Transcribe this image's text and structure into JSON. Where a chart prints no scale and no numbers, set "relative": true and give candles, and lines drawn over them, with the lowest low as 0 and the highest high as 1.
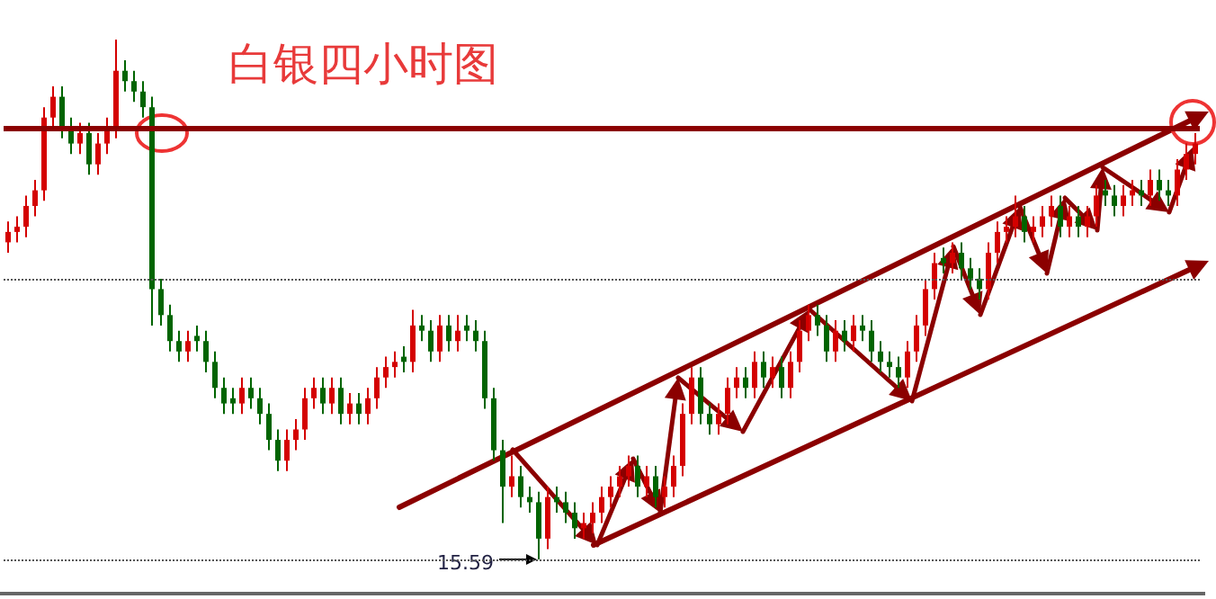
{
  "chart_data": {
    "type": "candlestick",
    "title": "白银四小时图",
    "relative": true,
    "colors": [
      "#d40000",
      "#d40000",
      "#d40000",
      "#d40000",
      "#d40000",
      "#d40000",
      "#006400",
      "#006400",
      "#d40000",
      "#006400",
      "#d40000",
      "#d40000",
      "#d40000",
      "#006400",
      "#006400",
      "#006400",
      "#006400",
      "#006400",
      "#006400",
      "#006400",
      "#d40000",
      "#006400",
      "#006400",
      "#006400",
      "#006400",
      "#006400",
      "#d40000",
      "#006400",
      "#006400",
      "#006400",
      "#006400",
      "#d40000",
      "#d40000",
      "#d40000",
      "#d40000",
      "#006400",
      "#d40000",
      "#006400",
      "#d40000",
      "#006400",
      "#d40000",
      "#d40000",
      "#d40000",
      "#d40000",
      "#006400",
      "#d40000",
      "#006400",
      "#006400",
      "#d40000",
      "#006400",
      "#d40000",
      "#006400",
      "#006400",
      "#006400",
      "#006400",
      "#006400",
      "#d40000",
      "#006400",
      "#006400",
      "#006400",
      "#d40000",
      "#006400",
      "#006400",
      "#006400",
      "#d40000",
      "#d40000",
      "#d40000",
      "#d40000",
      "#d40000",
      "#d40000",
      "#006400",
      "#d40000",
      "#006400",
      "#d40000",
      "#d40000",
      "#d40000",
      "#d40000",
      "#006400",
      "#006400",
      "#d40000",
      "#d40000",
      "#d40000",
      "#006400",
      "#d40000",
      "#006400",
      "#d40000",
      "#006400",
      "#d40000",
      "#d40000",
      "#d40000",
      "#006400",
      "#006400",
      "#d40000",
      "#006400",
      "#d40000",
      "#006400",
      "#006400",
      "#006400",
      "#006400",
      "#006400",
      "#d40000",
      "#d40000",
      "#d40000",
      "#d40000",
      "#006400",
      "#d40000",
      "#006400",
      "#006400",
      "#006400",
      "#d40000",
      "#d40000",
      "#d40000",
      "#d40000",
      "#006400",
      "#d40000",
      "#d40000",
      "#d40000",
      "#006400",
      "#d40000",
      "#006400",
      "#d40000",
      "#d40000",
      "#006400",
      "#006400",
      "#d40000",
      "#d40000",
      "#006400",
      "#d40000",
      "#006400",
      "#006400",
      "#d40000",
      "#d40000",
      "#d40000"
    ],
    "categories": [
      null,
      null,
      null,
      null,
      null,
      null,
      null,
      null,
      null,
      null,
      null,
      null,
      null,
      null,
      null,
      null,
      null,
      null,
      null,
      null,
      null,
      null,
      null,
      null,
      null,
      null,
      null,
      null,
      null,
      null,
      null,
      null,
      null,
      null,
      null,
      null,
      null,
      null,
      null,
      null,
      null,
      null,
      null,
      null,
      null,
      null,
      null,
      null,
      null,
      null,
      null,
      null,
      null,
      null,
      null,
      null,
      null,
      null,
      null,
      null,
      null,
      null,
      null,
      null,
      null,
      null,
      null,
      null,
      null,
      null,
      null,
      null,
      null,
      null,
      null,
      null,
      null,
      null,
      null,
      null,
      null,
      null,
      null,
      null,
      null,
      null,
      null,
      null,
      null,
      null,
      null,
      null,
      null,
      null,
      null,
      null,
      null,
      null,
      null,
      null,
      null,
      null,
      null,
      null,
      null,
      null,
      null,
      null,
      null,
      null,
      null,
      null,
      null,
      null,
      null,
      null,
      null,
      null,
      null,
      null,
      null,
      null,
      null,
      null,
      null,
      null,
      null,
      null,
      null,
      null,
      null,
      null,
      null
    ],
    "ohlc": [
      [
        0.61,
        0.65,
        0.59,
        0.63
      ],
      [
        0.63,
        0.66,
        0.61,
        0.64
      ],
      [
        0.64,
        0.7,
        0.62,
        0.68
      ],
      [
        0.68,
        0.73,
        0.66,
        0.71
      ],
      [
        0.71,
        0.87,
        0.69,
        0.85
      ],
      [
        0.85,
        0.91,
        0.83,
        0.89
      ],
      [
        0.89,
        0.91,
        0.81,
        0.83
      ],
      [
        0.83,
        0.85,
        0.78,
        0.8
      ],
      [
        0.8,
        0.84,
        0.78,
        0.82
      ],
      [
        0.82,
        0.84,
        0.74,
        0.76
      ],
      [
        0.76,
        0.82,
        0.74,
        0.8
      ],
      [
        0.8,
        0.85,
        0.78,
        0.83
      ],
      [
        0.83,
        1,
        0.81,
        0.94
      ],
      [
        0.94,
        0.96,
        0.9,
        0.92
      ],
      [
        0.92,
        0.94,
        0.88,
        0.9
      ],
      [
        0.9,
        0.92,
        0.85,
        0.87
      ],
      [
        0.87,
        0.89,
        0.45,
        0.52
      ],
      [
        0.52,
        0.54,
        0.45,
        0.47
      ],
      [
        0.47,
        0.49,
        0.4,
        0.42
      ],
      [
        0.42,
        0.44,
        0.38,
        0.4
      ],
      [
        0.4,
        0.44,
        0.38,
        0.42
      ],
      [
        0.43,
        0.45,
        0.4,
        0.42
      ],
      [
        0.42,
        0.44,
        0.36,
        0.38
      ],
      [
        0.38,
        0.4,
        0.31,
        0.33
      ],
      [
        0.33,
        0.35,
        0.28,
        0.3
      ],
      [
        0.31,
        0.33,
        0.28,
        0.3
      ],
      [
        0.3,
        0.35,
        0.28,
        0.33
      ],
      [
        0.33,
        0.35,
        0.29,
        0.31
      ],
      [
        0.31,
        0.33,
        0.26,
        0.28
      ],
      [
        0.28,
        0.3,
        0.21,
        0.23
      ],
      [
        0.23,
        0.25,
        0.17,
        0.19
      ],
      [
        0.19,
        0.25,
        0.17,
        0.23
      ],
      [
        0.23,
        0.27,
        0.21,
        0.25
      ],
      [
        0.25,
        0.33,
        0.23,
        0.31
      ],
      [
        0.31,
        0.35,
        0.29,
        0.33
      ],
      [
        0.33,
        0.35,
        0.28,
        0.3
      ],
      [
        0.3,
        0.35,
        0.28,
        0.33
      ],
      [
        0.33,
        0.35,
        0.26,
        0.28
      ],
      [
        0.28,
        0.32,
        0.26,
        0.3
      ],
      [
        0.3,
        0.32,
        0.26,
        0.28
      ],
      [
        0.28,
        0.33,
        0.26,
        0.31
      ],
      [
        0.31,
        0.37,
        0.29,
        0.35
      ],
      [
        0.35,
        0.39,
        0.33,
        0.37
      ],
      [
        0.37,
        0.4,
        0.35,
        0.38
      ],
      [
        0.39,
        0.41,
        0.36,
        0.38
      ],
      [
        0.38,
        0.48,
        0.36,
        0.45
      ],
      [
        0.45,
        0.47,
        0.42,
        0.44
      ],
      [
        0.44,
        0.46,
        0.38,
        0.4
      ],
      [
        0.4,
        0.47,
        0.38,
        0.45
      ],
      [
        0.45,
        0.47,
        0.4,
        0.42
      ],
      [
        0.42,
        0.47,
        0.4,
        0.44
      ],
      [
        0.45,
        0.47,
        0.42,
        0.44
      ],
      [
        0.44,
        0.46,
        0.4,
        0.42
      ],
      [
        0.42,
        0.44,
        0.29,
        0.31
      ],
      [
        0.31,
        0.33,
        0.19,
        0.21
      ],
      [
        0.21,
        0.23,
        0.07,
        0.14
      ],
      [
        0.14,
        0.2,
        0.12,
        0.16
      ],
      [
        0.16,
        0.18,
        0.1,
        0.12
      ],
      [
        0.12,
        0.14,
        0.09,
        0.11
      ],
      [
        0.11,
        0.13,
        0,
        0.04
      ],
      [
        0.04,
        0.14,
        0.02,
        0.12
      ],
      [
        0.12,
        0.14,
        0.09,
        0.11
      ],
      [
        0.11,
        0.13,
        0.07,
        0.09
      ],
      [
        0.09,
        0.11,
        0.04,
        0.06
      ],
      [
        0.06,
        0.09,
        0.04,
        0.07
      ],
      [
        0.07,
        0.11,
        0.05,
        0.09
      ],
      [
        0.09,
        0.14,
        0.07,
        0.12
      ],
      [
        0.12,
        0.16,
        0.1,
        0.14
      ],
      [
        0.14,
        0.18,
        0.12,
        0.16
      ],
      [
        0.16,
        0.2,
        0.14,
        0.18
      ],
      [
        0.18,
        0.2,
        0.12,
        0.14
      ],
      [
        0.14,
        0.18,
        0.12,
        0.16
      ],
      [
        0.16,
        0.18,
        0.1,
        0.12
      ],
      [
        0.12,
        0.16,
        0.1,
        0.14
      ],
      [
        0.14,
        0.2,
        0.12,
        0.18
      ],
      [
        0.18,
        0.3,
        0.16,
        0.28
      ],
      [
        0.28,
        0.37,
        0.26,
        0.35
      ],
      [
        0.35,
        0.37,
        0.26,
        0.28
      ],
      [
        0.28,
        0.3,
        0.24,
        0.26
      ],
      [
        0.26,
        0.3,
        0.24,
        0.28
      ],
      [
        0.28,
        0.35,
        0.26,
        0.33
      ],
      [
        0.33,
        0.37,
        0.31,
        0.35
      ],
      [
        0.35,
        0.37,
        0.31,
        0.33
      ],
      [
        0.33,
        0.4,
        0.31,
        0.38
      ],
      [
        0.38,
        0.4,
        0.33,
        0.35
      ],
      [
        0.35,
        0.39,
        0.33,
        0.37
      ],
      [
        0.37,
        0.39,
        0.31,
        0.33
      ],
      [
        0.33,
        0.4,
        0.31,
        0.38
      ],
      [
        0.38,
        0.46,
        0.36,
        0.44
      ],
      [
        0.44,
        0.49,
        0.42,
        0.47
      ],
      [
        0.47,
        0.49,
        0.43,
        0.45
      ],
      [
        0.45,
        0.47,
        0.38,
        0.4
      ],
      [
        0.4,
        0.46,
        0.38,
        0.44
      ],
      [
        0.44,
        0.46,
        0.4,
        0.42
      ],
      [
        0.42,
        0.47,
        0.4,
        0.45
      ],
      [
        0.45,
        0.47,
        0.42,
        0.44
      ],
      [
        0.44,
        0.46,
        0.38,
        0.4
      ],
      [
        0.4,
        0.42,
        0.36,
        0.38
      ],
      [
        0.38,
        0.4,
        0.35,
        0.37
      ],
      [
        0.37,
        0.39,
        0.33,
        0.35
      ],
      [
        0.35,
        0.42,
        0.33,
        0.4
      ],
      [
        0.4,
        0.47,
        0.38,
        0.45
      ],
      [
        0.45,
        0.54,
        0.43,
        0.52
      ],
      [
        0.52,
        0.59,
        0.5,
        0.57
      ],
      [
        0.58,
        0.6,
        0.55,
        0.57
      ],
      [
        0.57,
        0.61,
        0.55,
        0.59
      ],
      [
        0.59,
        0.61,
        0.54,
        0.56
      ],
      [
        0.56,
        0.58,
        0.52,
        0.54
      ],
      [
        0.54,
        0.56,
        0.5,
        0.52
      ],
      [
        0.52,
        0.61,
        0.5,
        0.59
      ],
      [
        0.59,
        0.65,
        0.57,
        0.63
      ],
      [
        0.63,
        0.66,
        0.61,
        0.64
      ],
      [
        0.64,
        0.7,
        0.62,
        0.66
      ],
      [
        0.66,
        0.68,
        0.61,
        0.63
      ],
      [
        0.63,
        0.66,
        0.61,
        0.64
      ],
      [
        0.64,
        0.68,
        0.62,
        0.66
      ],
      [
        0.66,
        0.7,
        0.64,
        0.68
      ],
      [
        0.68,
        0.7,
        0.62,
        0.64
      ],
      [
        0.64,
        0.68,
        0.62,
        0.66
      ],
      [
        0.66,
        0.68,
        0.62,
        0.64
      ],
      [
        0.64,
        0.68,
        0.62,
        0.66
      ],
      [
        0.66,
        0.72,
        0.64,
        0.7
      ],
      [
        0.71,
        0.73,
        0.68,
        0.7
      ],
      [
        0.7,
        0.72,
        0.66,
        0.68
      ],
      [
        0.68,
        0.72,
        0.66,
        0.7
      ],
      [
        0.7,
        0.73,
        0.68,
        0.71
      ],
      [
        0.71,
        0.73,
        0.68,
        0.7
      ],
      [
        0.7,
        0.75,
        0.68,
        0.73
      ],
      [
        0.73,
        0.75,
        0.69,
        0.71
      ],
      [
        0.71,
        0.73,
        0.68,
        0.7
      ],
      [
        0.7,
        0.77,
        0.68,
        0.75
      ],
      [
        0.75,
        0.8,
        0.73,
        0.78
      ],
      [
        0.78,
        0.82,
        0.76,
        0.8
      ]
    ],
    "ref_lines": [
      {
        "axis": "y",
        "value": 0.83,
        "color": "#8b0000",
        "line_style": "solid"
      },
      {
        "axis": "y",
        "value": 0.54,
        "color": "#555555",
        "line_style": "dotted"
      },
      {
        "axis": "y",
        "value": 0,
        "color": "#555555",
        "line_style": "dotted"
      }
    ],
    "annotations": [
      "15.59"
    ]
  }
}
